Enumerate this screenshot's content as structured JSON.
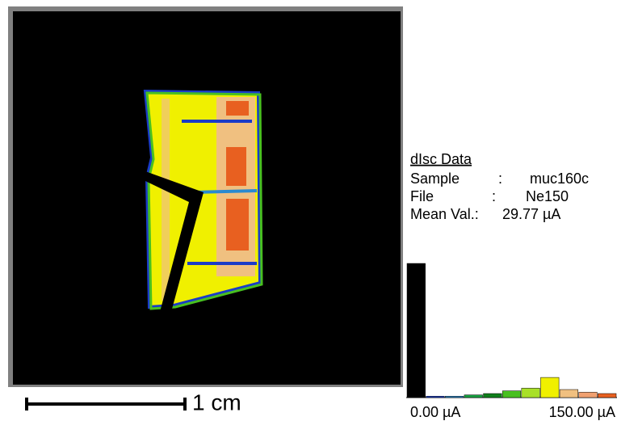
{
  "panel": {
    "title": "dIsc Data",
    "rows": [
      [
        "Sample",
        ":",
        "muc160c"
      ],
      [
        "File",
        ":",
        "Ne150"
      ],
      [
        "Mean Val.:",
        "29.77 µA"
      ]
    ]
  },
  "scale_bar": "1 cm",
  "histogram": {
    "min_label": "0.00 µA",
    "max_label": "150.00 µA",
    "values": [
      100,
      1,
      1,
      2,
      3,
      5,
      7,
      15,
      6,
      4,
      3
    ],
    "colors": [
      "#000000",
      "#1a3cc8",
      "#2a8ad0",
      "#18a040",
      "#10801c",
      "#48c020",
      "#a8e028",
      "#f0f000",
      "#f0c080",
      "#f0a070",
      "#e86020"
    ]
  }
}
